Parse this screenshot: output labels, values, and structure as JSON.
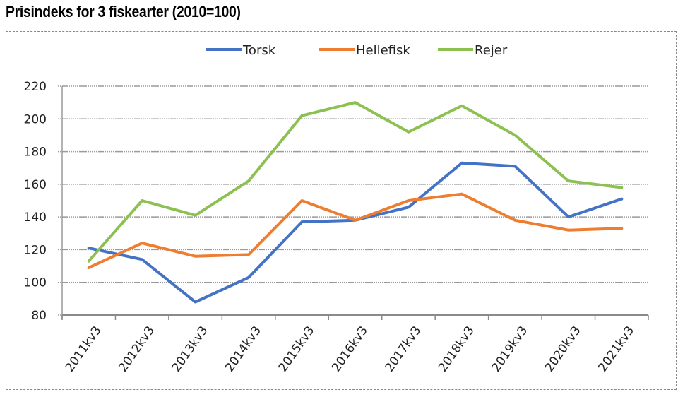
{
  "chart_data": {
    "type": "line",
    "title": "Prisindeks for 3 fiskearter (2010=100)",
    "xlabel": "",
    "ylabel": "",
    "categories": [
      "2011kv3",
      "2012kv3",
      "2013kv3",
      "2014kv3",
      "2015kv3",
      "2016kv3",
      "2017kv3",
      "2018kv3",
      "2019kv3",
      "2020kv3",
      "2021kv3"
    ],
    "ylim": [
      80,
      220
    ],
    "yticks": [
      80,
      100,
      120,
      140,
      160,
      180,
      200,
      220
    ],
    "grid": true,
    "legend_position": "top",
    "series": [
      {
        "name": "Torsk",
        "color": "#4472C4",
        "values": [
          121,
          114,
          88,
          103,
          137,
          138,
          146,
          173,
          171,
          140,
          151
        ]
      },
      {
        "name": "Hellefisk",
        "color": "#ED7D31",
        "values": [
          109,
          124,
          116,
          117,
          150,
          138,
          150,
          154,
          138,
          132,
          133
        ]
      },
      {
        "name": "Rejer",
        "color": "#8CC152",
        "values": [
          113,
          150,
          141,
          162,
          202,
          210,
          192,
          208,
          190,
          162,
          158
        ]
      }
    ]
  }
}
